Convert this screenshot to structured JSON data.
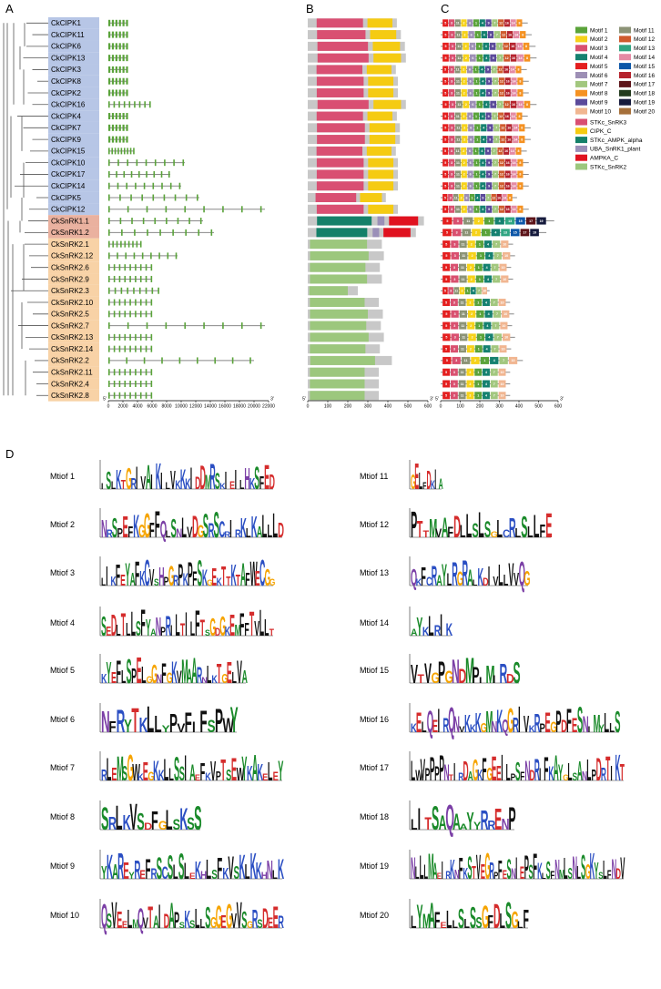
{
  "panels": {
    "a": "A",
    "b": "B",
    "c": "C",
    "d": "D"
  },
  "genes": [
    {
      "name": "CkCIPK1",
      "group": "CIPK"
    },
    {
      "name": "CkCIPK11",
      "group": "CIPK"
    },
    {
      "name": "CkCIPK6",
      "group": "CIPK"
    },
    {
      "name": "CkCIPK13",
      "group": "CIPK"
    },
    {
      "name": "CkCIPK3",
      "group": "CIPK"
    },
    {
      "name": "CkCIPK8",
      "group": "CIPK"
    },
    {
      "name": "CkCIPK2",
      "group": "CIPK"
    },
    {
      "name": "CkCIPK16",
      "group": "CIPK"
    },
    {
      "name": "CkCIPK4",
      "group": "CIPK"
    },
    {
      "name": "CkCIPK7",
      "group": "CIPK"
    },
    {
      "name": "CkCIPK9",
      "group": "CIPK"
    },
    {
      "name": "CkCIPK15",
      "group": "CIPK"
    },
    {
      "name": "CkCIPK10",
      "group": "CIPK"
    },
    {
      "name": "CkCIPK17",
      "group": "CIPK"
    },
    {
      "name": "CkCIPK14",
      "group": "CIPK"
    },
    {
      "name": "CkCIPK5",
      "group": "CIPK"
    },
    {
      "name": "CkCIPK12",
      "group": "CIPK"
    },
    {
      "name": "CkSnRK1.1",
      "group": "SnRK1"
    },
    {
      "name": "CkSnRK1.2",
      "group": "SnRK1"
    },
    {
      "name": "CkSnRK2.1",
      "group": "SnRK2"
    },
    {
      "name": "CkSnRK2.12",
      "group": "SnRK2"
    },
    {
      "name": "CkSnRK2.6",
      "group": "SnRK2"
    },
    {
      "name": "CkSnRK2.9",
      "group": "SnRK2"
    },
    {
      "name": "CkSnRK2.3",
      "group": "SnRK2"
    },
    {
      "name": "CkSnRK2.10",
      "group": "SnRK2"
    },
    {
      "name": "CkSnRK2.5",
      "group": "SnRK2"
    },
    {
      "name": "CkSnRK2.7",
      "group": "SnRK2"
    },
    {
      "name": "CkSnRK2.13",
      "group": "SnRK2"
    },
    {
      "name": "CkSnRK2.14",
      "group": "SnRK2"
    },
    {
      "name": "CkSnRK2.2",
      "group": "SnRK2"
    },
    {
      "name": "CkSnRK2.11",
      "group": "SnRK2"
    },
    {
      "name": "CkSnRK2.4",
      "group": "SnRK2"
    },
    {
      "name": "CkSnRK2.8",
      "group": "SnRK2"
    }
  ],
  "group_colors": {
    "CIPK": "#b7c6e6",
    "SnRK1": "#eab19f",
    "SnRK2": "#f8d2a6"
  },
  "axis_a": {
    "ticks": [
      "0",
      "2000",
      "4000",
      "6000",
      "8000",
      "10000",
      "12000",
      "14000",
      "16000",
      "18000",
      "20000",
      "22000"
    ],
    "start": "5'",
    "end": "3'"
  },
  "axis_b": {
    "ticks": [
      "0",
      "100",
      "200",
      "300",
      "400",
      "500",
      "600"
    ],
    "start": "5'",
    "end": "3'"
  },
  "axis_c": {
    "ticks": [
      "0",
      "100",
      "200",
      "300",
      "400",
      "500",
      "600"
    ],
    "start": "5'",
    "end": "3'"
  },
  "gene_lengths_kb": [
    2.5,
    2.5,
    2.5,
    2.5,
    2.5,
    2.5,
    2.5,
    5.8,
    2.5,
    2.5,
    2.5,
    3.5,
    10.5,
    8.5,
    10,
    12.5,
    21.5,
    13,
    14.5,
    4.5,
    9.5,
    6,
    6,
    7,
    6,
    6,
    21.5,
    6,
    6,
    20,
    6,
    6,
    6
  ],
  "protein_lengths": [
    445,
    465,
    485,
    490,
    440,
    450,
    450,
    490,
    445,
    460,
    460,
    440,
    450,
    450,
    450,
    390,
    450,
    580,
    540,
    370,
    380,
    360,
    370,
    250,
    355,
    375,
    365,
    380,
    360,
    420,
    355,
    355,
    355
  ],
  "domains": [
    {
      "name": "STKc_SnRK3",
      "color": "#d94f72"
    },
    {
      "name": "CIPK_C",
      "color": "#f5cb12"
    },
    {
      "name": "STKc_AMPK_alpha",
      "color": "#148069"
    },
    {
      "name": "UBA_SnRK1_plant",
      "color": "#9a8fb8"
    },
    {
      "name": "AMPKA_C",
      "color": "#e0121f"
    },
    {
      "name": "STKc_SnRK2",
      "color": "#9cc77d"
    }
  ],
  "motifs": [
    {
      "name": "Motif 1",
      "color": "#5aa33a"
    },
    {
      "name": "Motif 2",
      "color": "#f6d21a"
    },
    {
      "name": "Motif 3",
      "color": "#d9506f"
    },
    {
      "name": "Motif 4",
      "color": "#158170"
    },
    {
      "name": "Motif 5",
      "color": "#e41f1f"
    },
    {
      "name": "Motif 6",
      "color": "#9d8fb5"
    },
    {
      "name": "Motif 7",
      "color": "#a2c77e"
    },
    {
      "name": "Motif 8",
      "color": "#f59222"
    },
    {
      "name": "Motif 9",
      "color": "#5b4a9a"
    },
    {
      "name": "Motif 10",
      "color": "#f1b691"
    },
    {
      "name": "Motif 11",
      "color": "#8c9376"
    },
    {
      "name": "Motif 12",
      "color": "#cf5a2d"
    },
    {
      "name": "Motif 13",
      "color": "#30a582"
    },
    {
      "name": "Motif 14",
      "color": "#e48aa4"
    },
    {
      "name": "Motif 15",
      "color": "#0d57a8"
    },
    {
      "name": "Motif 16",
      "color": "#b5232d"
    },
    {
      "name": "Motif 17",
      "color": "#5d1419"
    },
    {
      "name": "Motif 18",
      "color": "#233b1e"
    },
    {
      "name": "Motif 19",
      "color": "#161b3d"
    },
    {
      "name": "Motif 20",
      "color": "#a6703a"
    }
  ],
  "logo_labels": [
    "Mtiof 1",
    "Mtiof 2",
    "Mtiof 3",
    "Mtiof 4",
    "Mtiof 5",
    "Mtiof 6",
    "Mtiof 7",
    "Mtiof 8",
    "Mtiof 9",
    "Mtiof 10",
    "Mtiof 11",
    "Mtiof 12",
    "Mtiof 13",
    "Mtiof 14",
    "Mtiof 15",
    "Mtiof 16",
    "Mtiof 17",
    "Mtiof 18",
    "Mtiof 19",
    "Mtiof 20"
  ],
  "logo_sequences": [
    "ISLKTGRIVAIKILVKKKIDDMRSKIEILHKSFED",
    "NRSPEFKGGFFQLSNLVDGSRSCRIRKLKALLLD",
    "LIKFEYAFKCVSHPGRPKPFSKGEKTTKTAFWECGG",
    "SEDLTLLSFYANPRILTILFTSGDGKEMFFTVLLT",
    "KYEFLSPELGGNFGKVMAARNLKTGELVA",
    "NFRYTKLLYPVFIFSPWY",
    "RLEMSGWKEGKKLLSSIAEFKVPTSEWYKAKELEY",
    "SRLKVSDFGLSKSS",
    "YKAREYREFRSCSLSLEKHLSFKVSKLKKHNLK",
    "QSVEELMQVTAIDAPSKSLLSGGEGVVSGRSDEER",
    "GELFDKIA",
    "PTTMVAFDLLSLSGLCRLSLLFE",
    "QKFCRAYLRGRALKDIVLLVVQG",
    "AYKLRIK",
    "VTVGPGNDMPIMIRDS",
    "KELQEIRQNVKKKGMNKQGRIVKRPEGPDFESNIMYLLS",
    "LWVPPPPNTIRDAGKFGEEILPSFNDRIFKAYGLSANLPDRTIKT",
    "LITSAQAAYYRRENP",
    "NLLLMAEIRKNFKSTVEGRPFESNIEPSFKLSFNMLSNLSGKYSLFNDV",
    "LYMAFELLSLSSGFDLSGLF"
  ],
  "motif_numbers": [
    "1",
    "2",
    "3",
    "4",
    "5",
    "6",
    "7",
    "8",
    "9",
    "10",
    "11",
    "12",
    "13",
    "14",
    "15",
    "16",
    "17",
    "18",
    "19",
    "20"
  ]
}
